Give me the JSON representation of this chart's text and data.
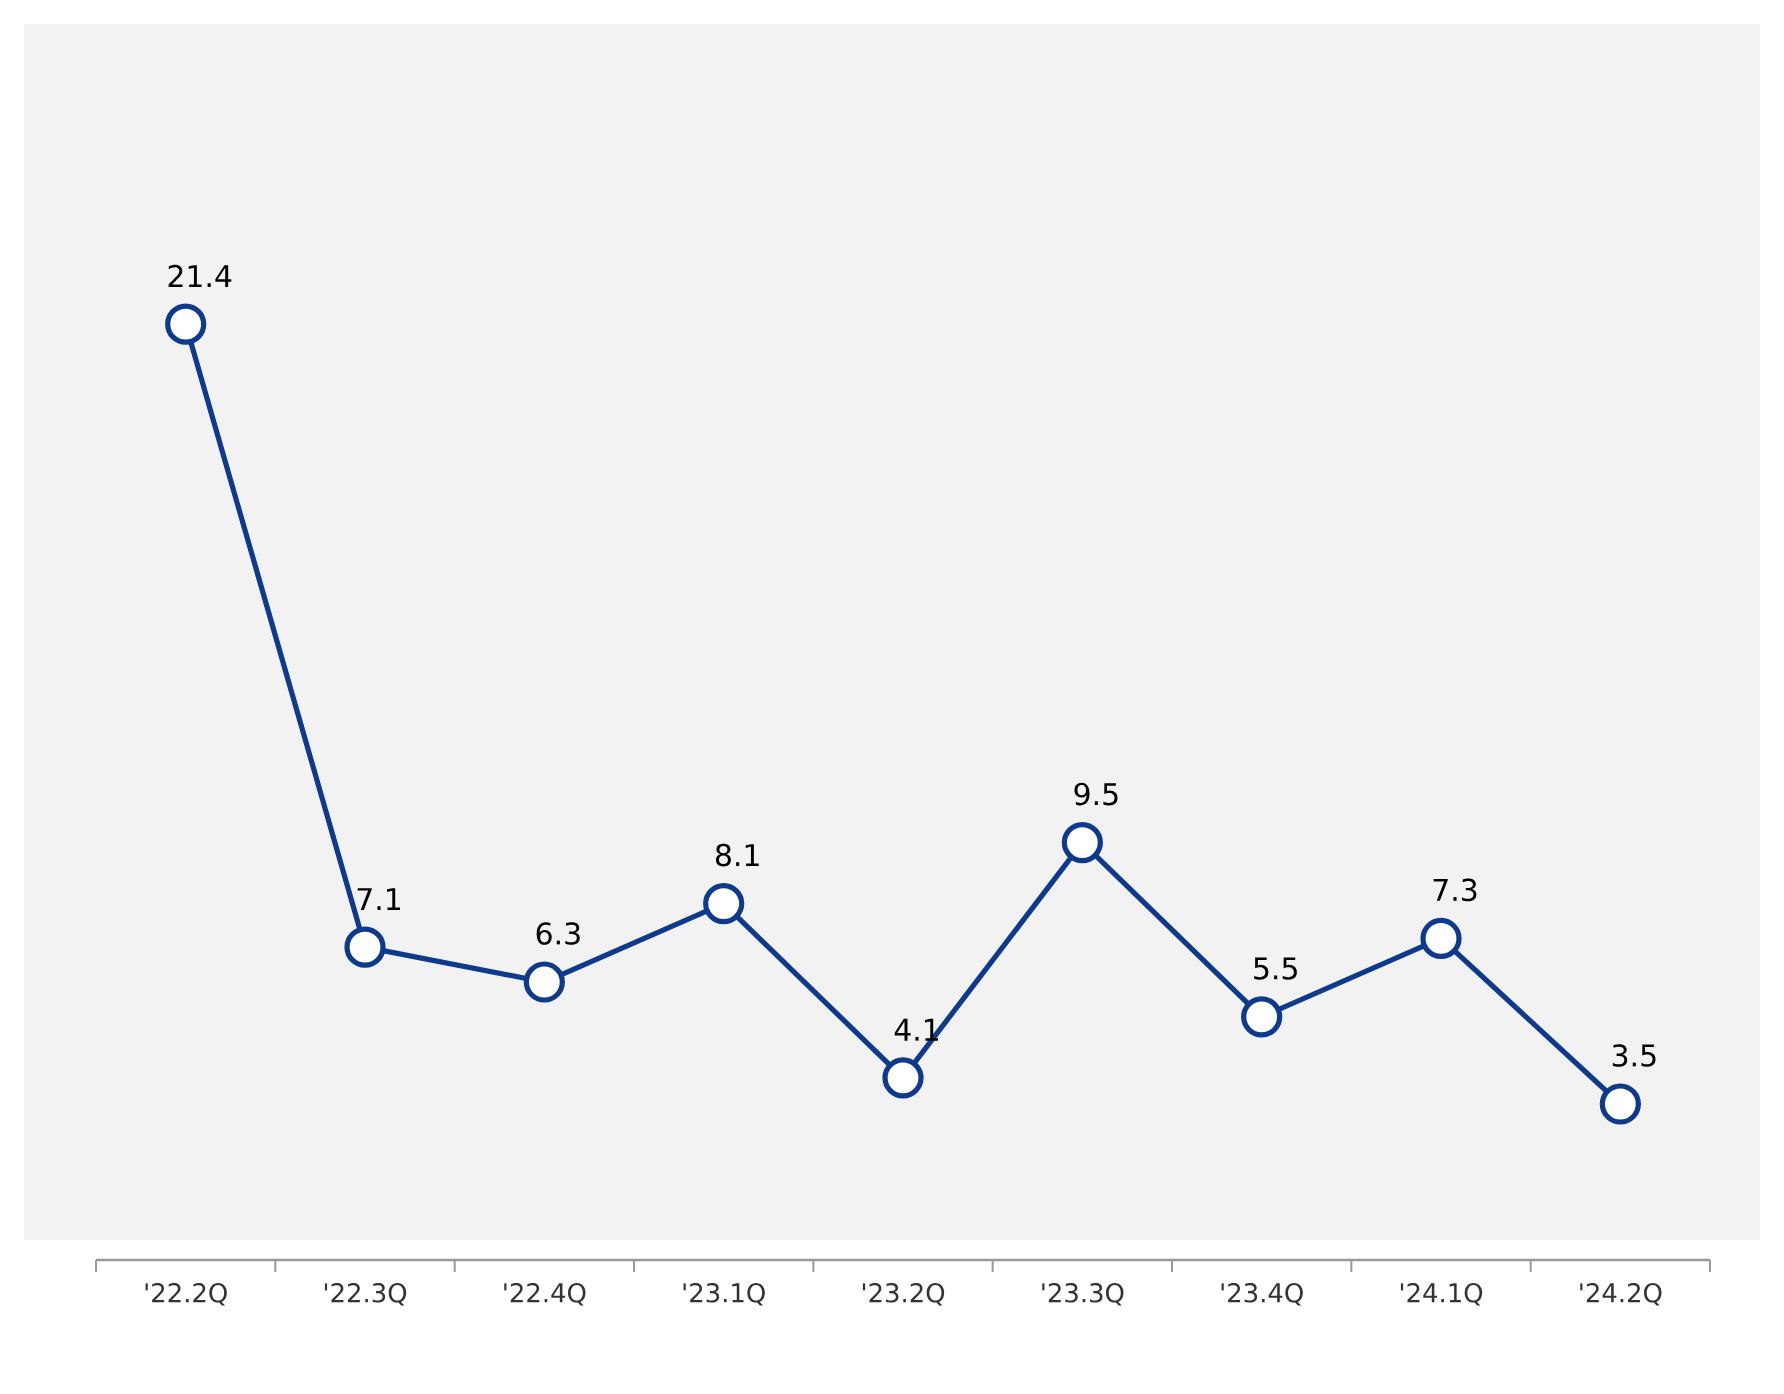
{
  "chart_data": {
    "type": "line",
    "categories": [
      "'22.2Q",
      "'22.3Q",
      "'22.4Q",
      "'23.1Q",
      "'23.2Q",
      "'23.3Q",
      "'23.4Q",
      "'24.1Q",
      "'24.2Q"
    ],
    "values": [
      21.4,
      7.1,
      6.3,
      8.1,
      4.1,
      9.5,
      5.5,
      7.3,
      3.5
    ],
    "color": "#0d3a8c",
    "marker": "circle",
    "line_style": "solid",
    "data_labels": true,
    "tick_labels": "x"
  }
}
